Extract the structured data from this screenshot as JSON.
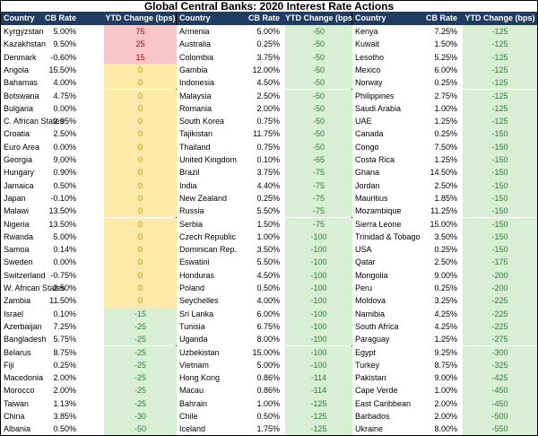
{
  "title": "Global Central Banks: 2020 Interest Rate Actions",
  "colors": {
    "header_bg": "#1f3d64",
    "positive": "#f7c6c8",
    "zero": "#fde9a8",
    "negative": "#d8efd6",
    "positive_text": "#c00000",
    "zero_text": "#c09000",
    "negative_text": "#2e7d32"
  },
  "chart_data": {
    "type": "table",
    "columns": [
      "Country",
      "CB Rate",
      "YTD Change (bps)"
    ],
    "panels": [
      [
        [
          "Kyrgyzstan",
          "5.00%",
          75
        ],
        [
          "Kazakhstan",
          "9.50%",
          25
        ],
        [
          "Denmark",
          "-0.60%",
          15
        ],
        [
          "Angola",
          "15.50%",
          0
        ],
        [
          "Bahamas",
          "4.00%",
          0
        ],
        [
          "Botswana",
          "4.75%",
          0
        ],
        [
          "Bulgaria",
          "0.00%",
          0
        ],
        [
          "C. African States",
          "2.95%",
          0
        ],
        [
          "Croatia",
          "2.50%",
          0
        ],
        [
          "Euro Area",
          "0.00%",
          0
        ],
        [
          "Georgia",
          "9.00%",
          0
        ],
        [
          "Hungary",
          "0.90%",
          0
        ],
        [
          "Jamaica",
          "0.50%",
          0
        ],
        [
          "Japan",
          "-0.10%",
          0
        ],
        [
          "Malawi",
          "13.50%",
          0
        ],
        [
          "Nigeria",
          "13.50%",
          0
        ],
        [
          "Rwanda",
          "5.00%",
          0
        ],
        [
          "Samoa",
          "0.14%",
          0
        ],
        [
          "Sweden",
          "0.00%",
          0
        ],
        [
          "Switzerland",
          "-0.75%",
          0
        ],
        [
          "W. African States",
          "2.50%",
          0
        ],
        [
          "Zambia",
          "11.50%",
          0
        ],
        [
          "Israel",
          "0.10%",
          -15
        ],
        [
          "Azerbaijan",
          "7.25%",
          -25
        ],
        [
          "Bangladesh",
          "5.75%",
          -25
        ],
        [
          "Belarus",
          "8.75%",
          -25
        ],
        [
          "Fiji",
          "0.25%",
          -25
        ],
        [
          "Macedonia",
          "2.00%",
          -25
        ],
        [
          "Morocco",
          "2.00%",
          -25
        ],
        [
          "Taiwan",
          "1.13%",
          -25
        ],
        [
          "China",
          "3.85%",
          -30
        ],
        [
          "Albania",
          "0.50%",
          -50
        ]
      ],
      [
        [
          "Armenia",
          "5.00%",
          -50
        ],
        [
          "Australia",
          "0.25%",
          -50
        ],
        [
          "Colombia",
          "3.75%",
          -50
        ],
        [
          "Gambia",
          "12.00%",
          -50
        ],
        [
          "Indonesia",
          "4.50%",
          -50
        ],
        [
          "Malaysia",
          "2.50%",
          -50
        ],
        [
          "Romania",
          "2.00%",
          -50
        ],
        [
          "South Korea",
          "0.75%",
          -50
        ],
        [
          "Tajikistan",
          "11.75%",
          -50
        ],
        [
          "Thailand",
          "0.75%",
          -50
        ],
        [
          "United Kingdom",
          "0.10%",
          -65
        ],
        [
          "Brazil",
          "3.75%",
          -75
        ],
        [
          "India",
          "4.40%",
          -75
        ],
        [
          "New Zealand",
          "0.25%",
          -75
        ],
        [
          "Russia",
          "5.50%",
          -75
        ],
        [
          "Serbia",
          "1.50%",
          -75
        ],
        [
          "Czech Republic",
          "1.00%",
          -100
        ],
        [
          "Dominican Rep.",
          "3.50%",
          -100
        ],
        [
          "Eswatini",
          "5.50%",
          -100
        ],
        [
          "Honduras",
          "4.50%",
          -100
        ],
        [
          "Poland",
          "0.50%",
          -100
        ],
        [
          "Seychelles",
          "4.00%",
          -100
        ],
        [
          "Sri Lanka",
          "6.00%",
          -100
        ],
        [
          "Tunisia",
          "6.75%",
          -100
        ],
        [
          "Uganda",
          "8.00%",
          -100
        ],
        [
          "Uzbekistan",
          "15.00%",
          -100
        ],
        [
          "Vietnam",
          "5.00%",
          -100
        ],
        [
          "Hong Kong",
          "0.86%",
          -114
        ],
        [
          "Macau",
          "0.86%",
          -114
        ],
        [
          "Bahrain",
          "1.00%",
          -125
        ],
        [
          "Chile",
          "0.50%",
          -125
        ],
        [
          "Iceland",
          "1.75%",
          -125
        ]
      ],
      [
        [
          "Kenya",
          "7.25%",
          -125
        ],
        [
          "Kuwait",
          "1.50%",
          -125
        ],
        [
          "Lesotho",
          "5.25%",
          -125
        ],
        [
          "Mexico",
          "6.00%",
          -125
        ],
        [
          "Norway",
          "0.25%",
          -125
        ],
        [
          "Philippines",
          "2.75%",
          -125
        ],
        [
          "Saudi Arabia",
          "1.00%",
          -125
        ],
        [
          "UAE",
          "1.25%",
          -125
        ],
        [
          "Canada",
          "0.25%",
          -150
        ],
        [
          "Congo",
          "7.50%",
          -150
        ],
        [
          "Costa Rica",
          "1.25%",
          -150
        ],
        [
          "Ghana",
          "14.50%",
          -150
        ],
        [
          "Jordan",
          "2.50%",
          -150
        ],
        [
          "Mauritius",
          "1.85%",
          -150
        ],
        [
          "Mozambique",
          "11.25%",
          -150
        ],
        [
          "Sierra Leone",
          "15.00%",
          -150
        ],
        [
          "Trinidad & Tobago",
          "3.50%",
          -150
        ],
        [
          "USA",
          "0.25%",
          -150
        ],
        [
          "Qatar",
          "2.50%",
          -175
        ],
        [
          "Mongolia",
          "9.00%",
          -200
        ],
        [
          "Peru",
          "0.25%",
          -200
        ],
        [
          "Moldova",
          "3.25%",
          -225
        ],
        [
          "Namibia",
          "4.25%",
          -225
        ],
        [
          "South Africa",
          "4.25%",
          -225
        ],
        [
          "Paraguay",
          "1.25%",
          -275
        ],
        [
          "Egypt",
          "9.25%",
          -300
        ],
        [
          "Turkey",
          "8.75%",
          -325
        ],
        [
          "Pakistan",
          "9.00%",
          -425
        ],
        [
          "Cape Verde",
          "1.00%",
          -450
        ],
        [
          "East Caribbean",
          "2.00%",
          -450
        ],
        [
          "Barbados",
          "2.00%",
          -500
        ],
        [
          "Ukraine",
          "8.00%",
          -550
        ]
      ]
    ]
  }
}
